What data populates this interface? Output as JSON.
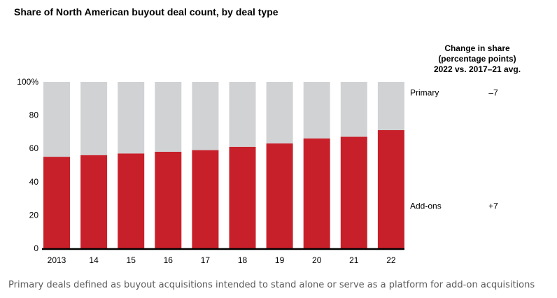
{
  "title": "Share of North American buyout deal count, by deal type",
  "right_header": [
    "Change in share",
    "(percentage points)",
    "2022 vs. 2017–21 avg."
  ],
  "caption": "Primary deals defined as buyout acquisitions intended to stand alone or serve as a platform for add-on acquisitions",
  "chart_data": {
    "type": "bar",
    "stacked": true,
    "categories": [
      "2013",
      "14",
      "15",
      "16",
      "17",
      "18",
      "19",
      "20",
      "21",
      "22"
    ],
    "series": [
      {
        "name": "Add-ons",
        "values": [
          55,
          56,
          57,
          58,
          59,
          61,
          63,
          66,
          67,
          71
        ],
        "color": "#c8202a"
      },
      {
        "name": "Primary",
        "values": [
          45,
          44,
          43,
          42,
          41,
          39,
          37,
          34,
          33,
          29
        ],
        "color": "#d1d2d4"
      }
    ],
    "ylim": [
      0,
      100
    ],
    "yticks": [
      "0",
      "20",
      "40",
      "60",
      "80",
      "100%"
    ],
    "ytick_values": [
      0,
      20,
      40,
      60,
      80,
      100
    ],
    "labels": [
      {
        "series": "Primary",
        "change": "–7"
      },
      {
        "series": "Add-ons",
        "change": "+7"
      }
    ],
    "grid": false,
    "legend": "right"
  }
}
